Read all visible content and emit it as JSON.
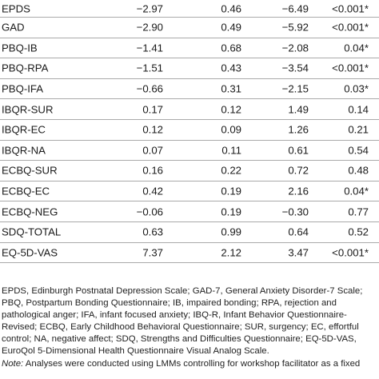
{
  "table": {
    "rows": [
      {
        "name": "EPDS",
        "b": "−2.97",
        "se": "0.46",
        "t": "−6.49",
        "p": "<0.001*"
      },
      {
        "name": "GAD",
        "b": "−2.90",
        "se": "0.49",
        "t": "−5.92",
        "p": "<0.001*"
      },
      {
        "name": "PBQ-IB",
        "b": "−1.41",
        "se": "0.68",
        "t": "−2.08",
        "p": "0.04*"
      },
      {
        "name": "PBQ-RPA",
        "b": "−1.51",
        "se": "0.43",
        "t": "−3.54",
        "p": "<0.001*"
      },
      {
        "name": "PBQ-IFA",
        "b": "−0.66",
        "se": "0.31",
        "t": "−2.15",
        "p": "0.03*"
      },
      {
        "name": "IBQR-SUR",
        "b": "0.17",
        "se": "0.12",
        "t": "1.49",
        "p": "0.14"
      },
      {
        "name": "IBQR-EC",
        "b": "0.12",
        "se": "0.09",
        "t": "1.26",
        "p": "0.21"
      },
      {
        "name": "IBQR-NA",
        "b": "0.07",
        "se": "0.11",
        "t": "0.61",
        "p": "0.54"
      },
      {
        "name": "ECBQ-SUR",
        "b": "0.16",
        "se": "0.22",
        "t": "0.72",
        "p": "0.48"
      },
      {
        "name": "ECBQ-EC",
        "b": "0.42",
        "se": "0.19",
        "t": "2.16",
        "p": "0.04*"
      },
      {
        "name": "ECBQ-NEG",
        "b": "−0.06",
        "se": "0.19",
        "t": "−0.30",
        "p": "0.77"
      },
      {
        "name": "SDQ-TOTAL",
        "b": "0.63",
        "se": "0.99",
        "t": "0.64",
        "p": "0.52"
      },
      {
        "name": "EQ-5D-VAS",
        "b": "7.37",
        "se": "2.12",
        "t": "3.47",
        "p": "<0.001*"
      }
    ]
  },
  "footnote": {
    "abbreviations": "EPDS, Edinburgh Postnatal Depression Scale; GAD-7, General Anxiety Disorder-7 Scale; PBQ, Postpartum Bonding Questionnaire; IB, impaired bonding; RPA, rejection and pathological anger; IFA, infant focused anxiety; IBQ-R, Infant Behavior Questionnaire-Revised; ECBQ, Early Childhood Behavioral Questionnaire; SUR, surgency; EC, effortful control; NA, negative affect; SDQ, Strengths and Difficulties Questionnaire; EQ-5D-VAS, EuroQol 5-Dimensional Health Questionnaire Visual Analog Scale.",
    "note_label": "Note:",
    "note_text": " Analyses were conducted using LMMs controlling for workshop facilitator as a fixed"
  }
}
